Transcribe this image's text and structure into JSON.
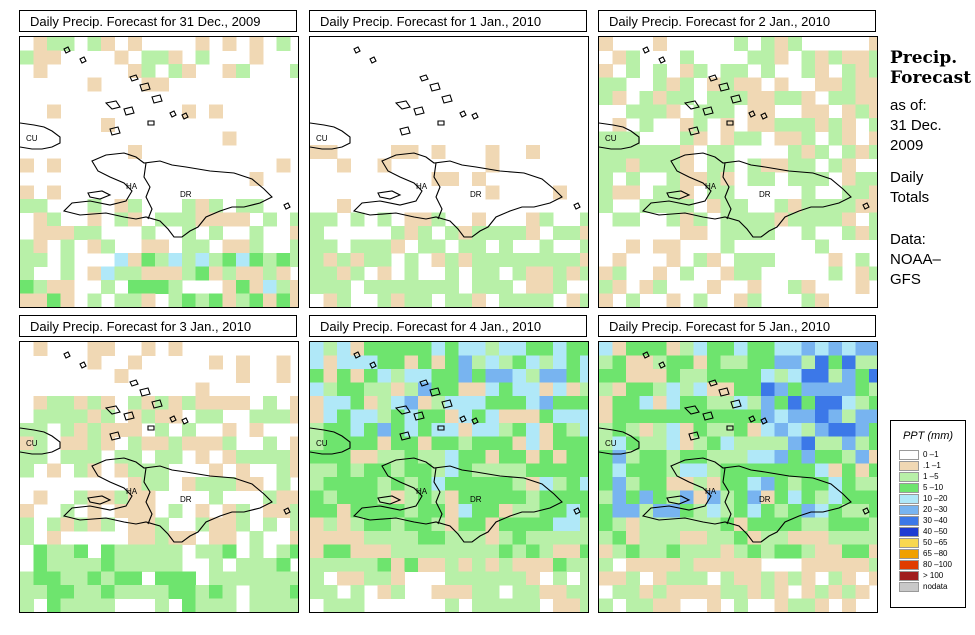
{
  "panels": [
    {
      "title": "Daily Precip. Forecast for  31 Dec., 2009",
      "seed": 11,
      "mode": "p1"
    },
    {
      "title": "Daily Precip. Forecast for  1 Jan., 2010",
      "seed": 23,
      "mode": "p2"
    },
    {
      "title": "Daily Precip. Forecast for  2 Jan., 2010",
      "seed": 37,
      "mode": "p3"
    },
    {
      "title": "Daily Precip. Forecast for  3 Jan., 2010",
      "seed": 41,
      "mode": "p4"
    },
    {
      "title": "Daily Precip. Forecast for  4 Jan., 2010",
      "seed": 53,
      "mode": "p5"
    },
    {
      "title": "Daily Precip. Forecast for  5 Jan., 2010",
      "seed": 67,
      "mode": "p6"
    }
  ],
  "map_labels": {
    "cu": "CU",
    "ha": "HA",
    "dr": "DR"
  },
  "side": {
    "title_line1": "Precip.",
    "title_line2": "Forecast",
    "asof": "as of:",
    "date_line1": "31 Dec.",
    "date_line2": "2009",
    "daily": "Daily",
    "totals": "Totals",
    "data_label": "Data:",
    "source_line1": "NOAA–",
    "source_line2": "GFS"
  },
  "legend": {
    "title": "PPT (mm)",
    "items": [
      {
        "label": "0 –1",
        "color": "#ffffff"
      },
      {
        "label": ".1 –1",
        "color": "#f0d8b4"
      },
      {
        "label": "1 –5",
        "color": "#b8f0a8"
      },
      {
        "label": "5 –10",
        "color": "#6ee46e"
      },
      {
        "label": "10 –20",
        "color": "#b0e8f8"
      },
      {
        "label": "20 –30",
        "color": "#78b4f0"
      },
      {
        "label": "30 –40",
        "color": "#3c78e8"
      },
      {
        "label": "40 –50",
        "color": "#1e3cd2"
      },
      {
        "label": "50 –65",
        "color": "#f8d850"
      },
      {
        "label": "65 –80",
        "color": "#f0a000"
      },
      {
        "label": "80 –100",
        "color": "#e03c00"
      },
      {
        "label": "> 100",
        "color": "#a01e1e"
      },
      {
        "label": "nodata",
        "color": "#c8c8c8"
      }
    ]
  }
}
